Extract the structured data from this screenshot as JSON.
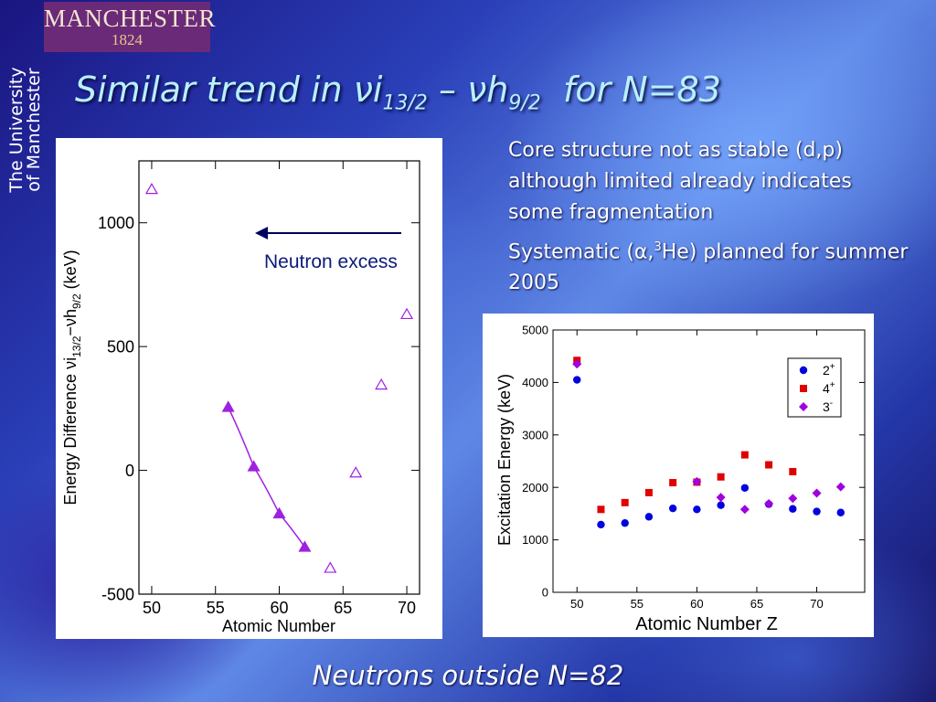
{
  "logo": {
    "name": "MANCHESTER",
    "year": "1824"
  },
  "side_text": [
    "The University",
    "of Manchester"
  ],
  "title": {
    "part1": "Similar trend in νi",
    "sub1": "13/2",
    "part2": " – νh",
    "sub2": "9/2",
    "part3": "  for N=83"
  },
  "notes": {
    "line1": "Core structure not as stable (d,p) although limited already indicates some fragmentation",
    "line2_pre": "Systematic (α,",
    "line2_sup": "3",
    "line2_post": "He) planned for summer 2005"
  },
  "footer": "Neutrons outside N=82",
  "chart_data": [
    {
      "type": "scatter",
      "xlabel": "Atomic Number",
      "ylabel": "Energy Difference νi13/2−νh9/2 (keV)",
      "xlim": [
        49,
        71
      ],
      "ylim": [
        -500,
        1250
      ],
      "xticks": [
        50,
        55,
        60,
        65,
        70
      ],
      "yticks": [
        -500,
        0,
        500,
        1000
      ],
      "annotation": "Neutron excess",
      "series": [
        {
          "marker": "triangle-filled",
          "color": "#a020e0",
          "connected": true,
          "points": [
            [
              56,
              255
            ],
            [
              58,
              15
            ],
            [
              60,
              -175
            ],
            [
              62,
              -310
            ]
          ]
        },
        {
          "marker": "triangle-open",
          "color": "#a020e0",
          "connected": false,
          "points": [
            [
              50,
              1135
            ],
            [
              64,
              -395
            ],
            [
              66,
              -10
            ],
            [
              68,
              345
            ],
            [
              70,
              630
            ]
          ]
        }
      ]
    },
    {
      "type": "scatter",
      "xlabel": "Atomic Number Z",
      "ylabel": "Excitation Energy (keV)",
      "xlim": [
        48,
        74
      ],
      "ylim": [
        0,
        5000
      ],
      "xticks": [
        50,
        55,
        60,
        65,
        70
      ],
      "yticks": [
        0,
        1000,
        2000,
        3000,
        4000,
        5000
      ],
      "legend": "top-right",
      "series": [
        {
          "name": "2+",
          "base": "2",
          "sup": "+",
          "marker": "circle",
          "color": "#0000e0",
          "points": [
            [
              50,
              4050
            ],
            [
              52,
              1290
            ],
            [
              54,
              1320
            ],
            [
              56,
              1440
            ],
            [
              58,
              1600
            ],
            [
              60,
              1580
            ],
            [
              62,
              1660
            ],
            [
              64,
              1990
            ],
            [
              66,
              1680
            ],
            [
              68,
              1590
            ],
            [
              70,
              1540
            ],
            [
              72,
              1520
            ]
          ]
        },
        {
          "name": "4+",
          "base": "4",
          "sup": "+",
          "marker": "square",
          "color": "#e00000",
          "points": [
            [
              50,
              4420
            ],
            [
              52,
              1580
            ],
            [
              54,
              1710
            ],
            [
              56,
              1900
            ],
            [
              58,
              2090
            ],
            [
              60,
              2100
            ],
            [
              62,
              2200
            ],
            [
              64,
              2620
            ],
            [
              66,
              2430
            ],
            [
              68,
              2300
            ]
          ]
        },
        {
          "name": "3-",
          "base": "3",
          "sup": "-",
          "marker": "diamond",
          "color": "#a000e0",
          "points": [
            [
              50,
              4350
            ],
            [
              60,
              2110
            ],
            [
              62,
              1810
            ],
            [
              64,
              1580
            ],
            [
              66,
              1690
            ],
            [
              68,
              1790
            ],
            [
              70,
              1890
            ],
            [
              72,
              2010
            ]
          ]
        }
      ]
    }
  ]
}
